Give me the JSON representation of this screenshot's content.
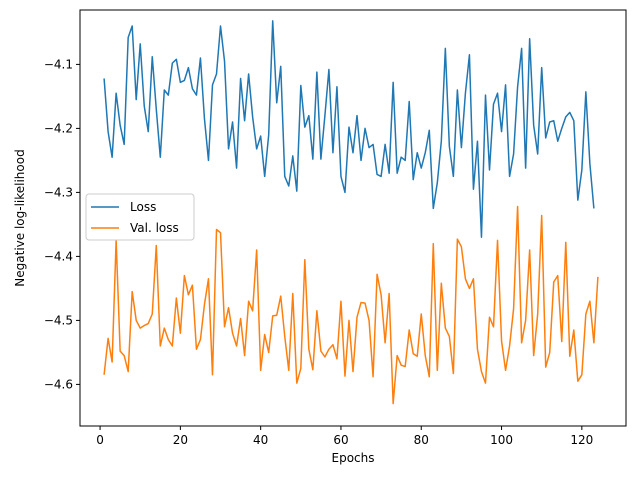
{
  "chart_data": {
    "type": "line",
    "title": "",
    "xlabel": "Epochs",
    "ylabel": "Negative log-likelihood",
    "xlim": [
      -5,
      131
    ],
    "ylim": [
      -4.665,
      -4.015
    ],
    "x_ticks": [
      0,
      20,
      40,
      60,
      80,
      100,
      120
    ],
    "y_ticks": [
      -4.6,
      -4.5,
      -4.4,
      -4.3,
      -4.2,
      -4.1
    ],
    "y_tick_labels": [
      "−4.6",
      "−4.5",
      "−4.4",
      "−4.3",
      "−4.2",
      "−4.1"
    ],
    "grid": false,
    "legend": "center-left",
    "x_start": 1,
    "series": [
      {
        "name": "Loss",
        "color": "#1f77b4",
        "values": [
          -4.122,
          -4.205,
          -4.245,
          -4.145,
          -4.195,
          -4.225,
          -4.058,
          -4.04,
          -4.155,
          -4.068,
          -4.165,
          -4.205,
          -4.088,
          -4.17,
          -4.245,
          -4.14,
          -4.148,
          -4.098,
          -4.092,
          -4.128,
          -4.125,
          -4.105,
          -4.138,
          -4.148,
          -4.09,
          -4.185,
          -4.25,
          -4.132,
          -4.115,
          -4.04,
          -4.095,
          -4.232,
          -4.19,
          -4.262,
          -4.122,
          -4.188,
          -4.115,
          -4.182,
          -4.232,
          -4.212,
          -4.275,
          -4.21,
          -4.032,
          -4.16,
          -4.103,
          -4.275,
          -4.29,
          -4.243,
          -4.298,
          -4.133,
          -4.198,
          -4.18,
          -4.248,
          -4.112,
          -4.248,
          -4.18,
          -4.108,
          -4.238,
          -4.135,
          -4.275,
          -4.3,
          -4.198,
          -4.238,
          -4.18,
          -4.25,
          -4.2,
          -4.23,
          -4.225,
          -4.272,
          -4.275,
          -4.225,
          -4.27,
          -4.128,
          -4.27,
          -4.245,
          -4.25,
          -4.158,
          -4.28,
          -4.238,
          -4.262,
          -4.238,
          -4.203,
          -4.325,
          -4.285,
          -4.22,
          -4.075,
          -4.228,
          -4.275,
          -4.14,
          -4.23,
          -4.145,
          -4.085,
          -4.295,
          -4.22,
          -4.37,
          -4.148,
          -4.265,
          -4.162,
          -4.145,
          -4.205,
          -4.132,
          -4.275,
          -4.24,
          -4.135,
          -4.075,
          -4.262,
          -4.06,
          -4.195,
          -4.24,
          -4.105,
          -4.215,
          -4.19,
          -4.188,
          -4.22,
          -4.2,
          -4.182,
          -4.175,
          -4.188,
          -4.312,
          -4.265,
          -4.143,
          -4.255,
          -4.325
        ]
      },
      {
        "name": "Val. loss",
        "color": "#ff7f0e",
        "values": [
          -4.585,
          -4.528,
          -4.565,
          -4.375,
          -4.548,
          -4.555,
          -4.58,
          -4.455,
          -4.5,
          -4.512,
          -4.508,
          -4.505,
          -4.49,
          -4.383,
          -4.54,
          -4.512,
          -4.53,
          -4.54,
          -4.465,
          -4.52,
          -4.43,
          -4.46,
          -4.445,
          -4.545,
          -4.53,
          -4.475,
          -4.435,
          -4.585,
          -4.358,
          -4.363,
          -4.51,
          -4.48,
          -4.52,
          -4.54,
          -4.497,
          -4.555,
          -4.47,
          -4.485,
          -4.39,
          -4.578,
          -4.522,
          -4.55,
          -4.493,
          -4.492,
          -4.462,
          -4.525,
          -4.578,
          -4.458,
          -4.598,
          -4.575,
          -4.405,
          -4.545,
          -4.577,
          -4.485,
          -4.548,
          -4.557,
          -4.545,
          -4.538,
          -4.56,
          -4.47,
          -4.587,
          -4.5,
          -4.58,
          -4.495,
          -4.472,
          -4.473,
          -4.5,
          -4.588,
          -4.428,
          -4.46,
          -4.535,
          -4.458,
          -4.63,
          -4.555,
          -4.57,
          -4.572,
          -4.515,
          -4.552,
          -4.556,
          -4.49,
          -4.555,
          -4.588,
          -4.38,
          -4.578,
          -4.442,
          -4.512,
          -4.525,
          -4.583,
          -4.373,
          -4.385,
          -4.435,
          -4.45,
          -4.435,
          -4.545,
          -4.58,
          -4.598,
          -4.495,
          -4.51,
          -4.375,
          -4.532,
          -4.578,
          -4.54,
          -4.482,
          -4.322,
          -4.535,
          -4.5,
          -4.39,
          -4.555,
          -4.49,
          -4.336,
          -4.573,
          -4.55,
          -4.44,
          -4.43,
          -4.533,
          -4.378,
          -4.556,
          -4.515,
          -4.595,
          -4.585,
          -4.49,
          -4.47,
          -4.535,
          -4.432
        ]
      }
    ]
  }
}
